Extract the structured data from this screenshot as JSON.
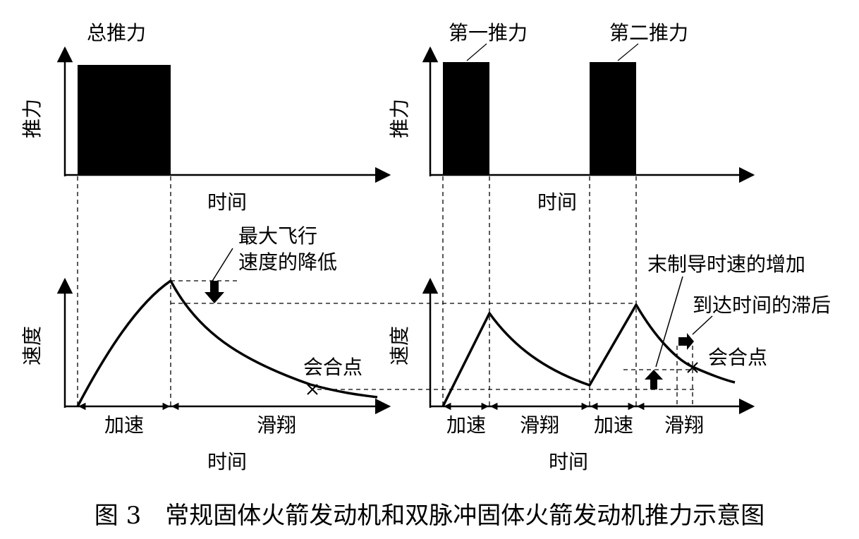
{
  "left": {
    "thrust_title": "总推力",
    "thrust_ylabel": "推力",
    "time_label_top": "时间",
    "velocity_ylabel": "速度",
    "phase_accel": "加速",
    "phase_glide": "滑翔",
    "time_label_bottom": "时间",
    "annotation_speed_drop_1": "最大飞行",
    "annotation_speed_drop_2": "速度的降低",
    "rendezvous": "会合点"
  },
  "right": {
    "thrust_title_1": "第一推力",
    "thrust_title_2": "第二推力",
    "thrust_ylabel": "推力",
    "time_label_top": "时间",
    "velocity_ylabel": "速度",
    "phase_accel_1": "加速",
    "phase_glide_1": "滑翔",
    "phase_accel_2": "加速",
    "phase_glide_2": "滑翔",
    "time_label_bottom": "时间",
    "annotation_terminal_speed": "末制导时速的增加",
    "annotation_arrival_delay": "到达时间的滞后",
    "rendezvous": "会合点"
  },
  "caption": "图 3　常规固体火箭发动机和双脉冲固体火箭发动机推力示意图"
}
